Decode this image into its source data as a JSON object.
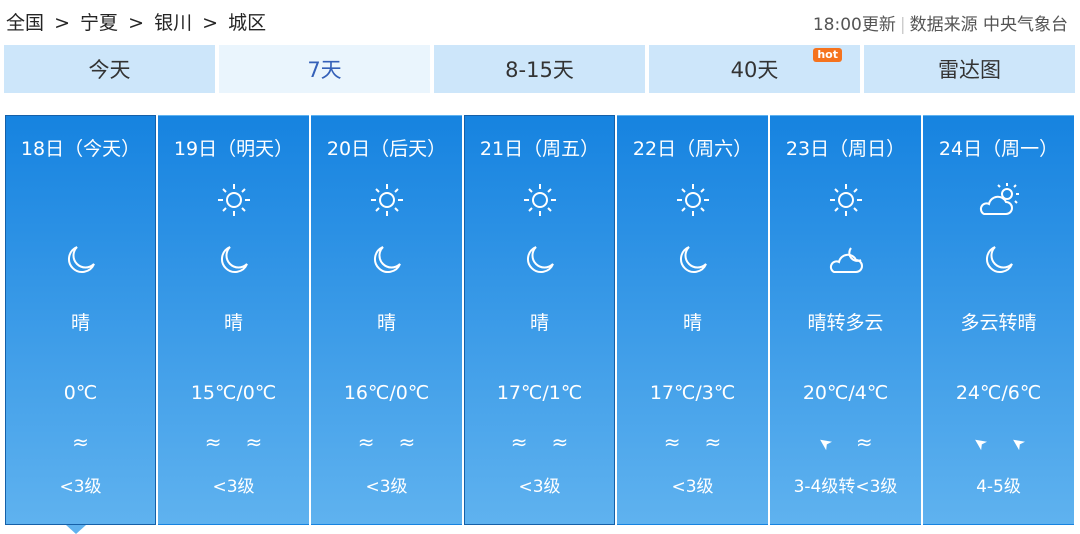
{
  "breadcrumb": [
    "全国",
    ">",
    "宁夏",
    ">",
    "银川",
    ">",
    "城区"
  ],
  "update_time": "18:00更新",
  "source": "数据来源 中央气象台",
  "tabs": [
    {
      "label": "今天"
    },
    {
      "label": "7天"
    },
    {
      "label": "8-15天"
    },
    {
      "label": "40天",
      "badge": "hot"
    },
    {
      "label": "雷达图"
    }
  ],
  "days": [
    {
      "date": "18日（今天）",
      "day_icon": "",
      "night_icon": "moon",
      "weather": "晴",
      "temp": "0℃",
      "wind_icons": [
        "wave"
      ],
      "wind": "<3级"
    },
    {
      "date": "19日（明天）",
      "day_icon": "sun",
      "night_icon": "moon",
      "weather": "晴",
      "temp": "15℃/0℃",
      "wind_icons": [
        "wave",
        "wave"
      ],
      "wind": "<3级"
    },
    {
      "date": "20日（后天）",
      "day_icon": "sun",
      "night_icon": "moon",
      "weather": "晴",
      "temp": "16℃/0℃",
      "wind_icons": [
        "wave",
        "wave"
      ],
      "wind": "<3级"
    },
    {
      "date": "21日（周五）",
      "day_icon": "sun",
      "night_icon": "moon",
      "weather": "晴",
      "temp": "17℃/1℃",
      "wind_icons": [
        "wave",
        "wave"
      ],
      "wind": "<3级"
    },
    {
      "date": "22日（周六）",
      "day_icon": "sun",
      "night_icon": "moon",
      "weather": "晴",
      "temp": "17℃/3℃",
      "wind_icons": [
        "wave",
        "wave"
      ],
      "wind": "<3级"
    },
    {
      "date": "23日（周日）",
      "day_icon": "sun",
      "night_icon": "cloud-moon",
      "weather": "晴转多云",
      "temp": "20℃/4℃",
      "wind_icons": [
        "arrow",
        "wave"
      ],
      "wind": "3-4级转<3级"
    },
    {
      "date": "24日（周一）",
      "day_icon": "cloud-sun",
      "night_icon": "moon",
      "weather": "多云转晴",
      "temp": "24℃/6℃",
      "wind_icons": [
        "arrow",
        "arrow"
      ],
      "wind": "4-5级"
    }
  ],
  "colors": {
    "card_top": "#1683e0",
    "card_bottom": "#5fb2ef",
    "tab": "#cde6fa",
    "tab_active": "#eaf5fd",
    "hot": "#f5731e"
  }
}
